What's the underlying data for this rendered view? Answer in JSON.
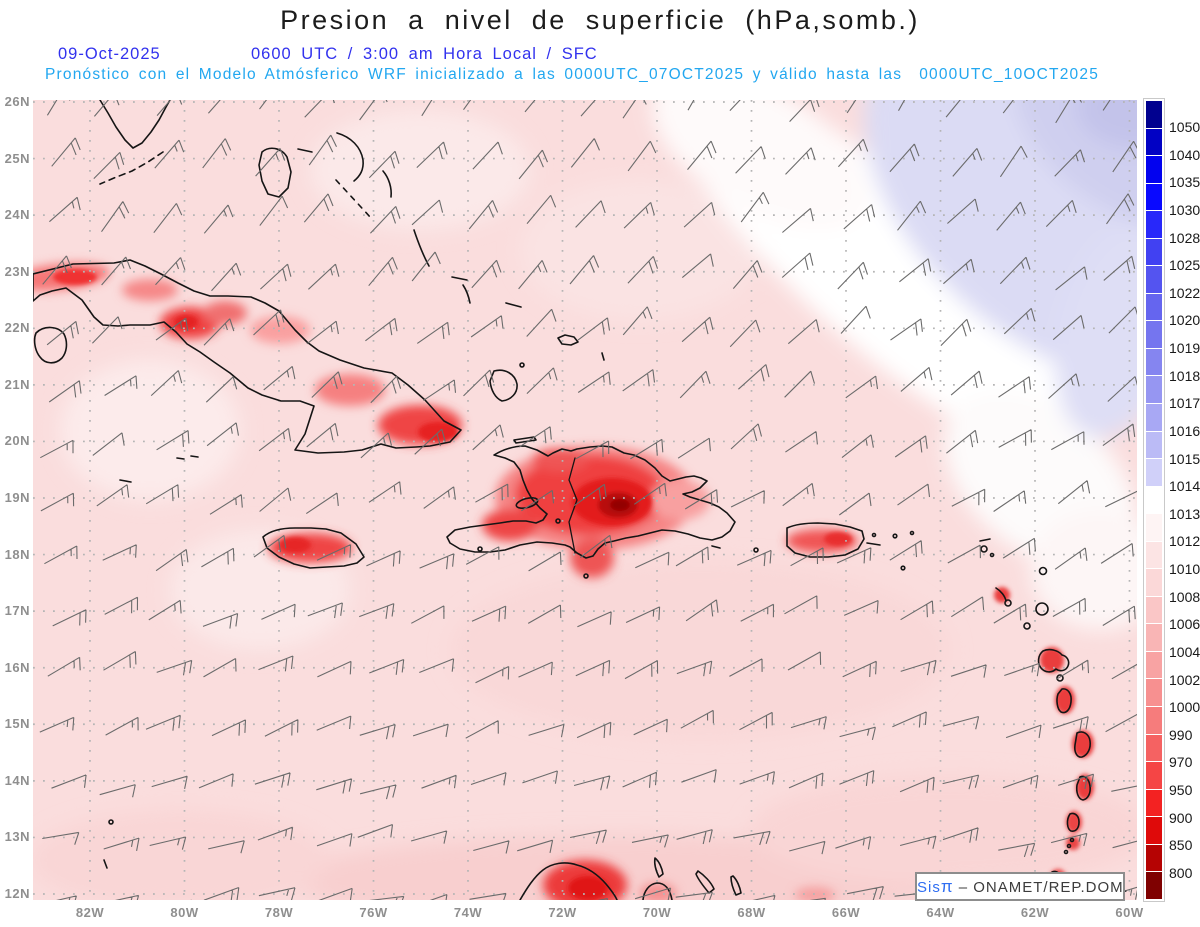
{
  "title": "Presion a nivel de superficie (hPa,somb.)",
  "header": {
    "date": "09-Oct-2025",
    "time": "0600 UTC / 3:00 am Hora Local / SFC",
    "forecast_line": "Pronóstico con el Modelo Atmósferico WRF inicializado a las 0000UTC_07OCT2025 y válido hasta las  0000UTC_10OCT2025"
  },
  "watermark": {
    "sis": "Sis",
    "pi": "π",
    "rest": " – ONAMET/REP.DOM."
  },
  "axes": {
    "lat_labels": [
      "26N",
      "25N",
      "24N",
      "23N",
      "22N",
      "21N",
      "20N",
      "19N",
      "18N",
      "17N",
      "16N",
      "15N",
      "14N",
      "13N",
      "12N"
    ],
    "lon_labels": [
      "82W",
      "80W",
      "78W",
      "76W",
      "74W",
      "72W",
      "70W",
      "68W",
      "66W",
      "64W",
      "62W",
      "60W"
    ]
  },
  "colorbar": {
    "labels": [
      "1050",
      "1040",
      "1035",
      "1030",
      "1028",
      "1025",
      "1022",
      "1020",
      "1019",
      "1018",
      "1017",
      "1016",
      "1015",
      "1014",
      "1013",
      "1012",
      "1010",
      "1008",
      "1006",
      "1004",
      "1002",
      "1000",
      "990",
      "970",
      "950",
      "900",
      "850",
      "800"
    ],
    "colors": [
      "#01018f",
      "#0101c4",
      "#0202ef",
      "#0909ff",
      "#2828fa",
      "#4141f2",
      "#5454f0",
      "#6565ef",
      "#7575ef",
      "#8585f0",
      "#9696f2",
      "#a8a8f4",
      "#bbbbf6",
      "#d0d0f9",
      "#ffffff",
      "#fef4f4",
      "#fce4e4",
      "#fbd8d8",
      "#fac6c6",
      "#f9b5b5",
      "#f8a3a3",
      "#f79090",
      "#f67c7c",
      "#f56262",
      "#f54545",
      "#f32222",
      "#df0a0a",
      "#b50303",
      "#7f0101"
    ]
  },
  "chart_data": {
    "type": "heatmap",
    "title": "Presion a nivel de superficie (hPa,somb.)",
    "valid_time": "09-Oct-2025 0600 UTC / 3:00 am Hora Local",
    "level": "SFC",
    "model": "WRF",
    "initialized": "0000UTC_07OCT2025",
    "valid_until": "0000UTC_10OCT2025",
    "lat_range_deg_n": [
      12,
      26
    ],
    "lon_range_deg_w": [
      83.3,
      58.6
    ],
    "x_ticks": [
      "82W",
      "80W",
      "78W",
      "76W",
      "74W",
      "72W",
      "70W",
      "68W",
      "66W",
      "64W",
      "62W",
      "60W"
    ],
    "y_ticks": [
      "26N",
      "25N",
      "24N",
      "23N",
      "22N",
      "21N",
      "20N",
      "19N",
      "18N",
      "17N",
      "16N",
      "15N",
      "14N",
      "13N",
      "12N"
    ],
    "shading_levels_hPa": [
      800,
      850,
      900,
      950,
      970,
      990,
      1000,
      1002,
      1004,
      1006,
      1008,
      1010,
      1012,
      1013,
      1014,
      1015,
      1016,
      1017,
      1018,
      1019,
      1020,
      1022,
      1025,
      1028,
      1030,
      1035,
      1040,
      1050
    ],
    "field_summary": [
      {
        "region": "northeast Atlantic corner of domain",
        "pressure_hPa": "1014-1018, subtropical high shaded lavender-blue"
      },
      {
        "region": "diagonal band northwest of the high",
        "pressure_hPa": "1013-1014 (white)"
      },
      {
        "region": "open Caribbean and Gulf waters",
        "pressure_hPa": "1008-1012 light pink"
      },
      {
        "region": "southern Caribbean / Colombian coast",
        "pressure_hPa": "1004-1008 deeper pink"
      },
      {
        "region": "Cuba mountain areas",
        "pressure_hPa": "990-1004 red maxima of shading"
      },
      {
        "region": "Hispaniola Cordillera Central",
        "pressure_hPa": "minimum ~900-970, darkest red core"
      },
      {
        "region": "Jamaica, Puerto Rico, Lesser Antilles islands",
        "pressure_hPa": "990-1004 terrain-reduced red spots"
      }
    ],
    "wind_barbs": {
      "regime": "easterly trade winds",
      "direction": "from E-NE",
      "speed_kt": "5-20"
    },
    "legend_position": "right vertical colorbar",
    "grid": "dotted gray graticule, 1 deg latitude x 2 deg longitude"
  }
}
